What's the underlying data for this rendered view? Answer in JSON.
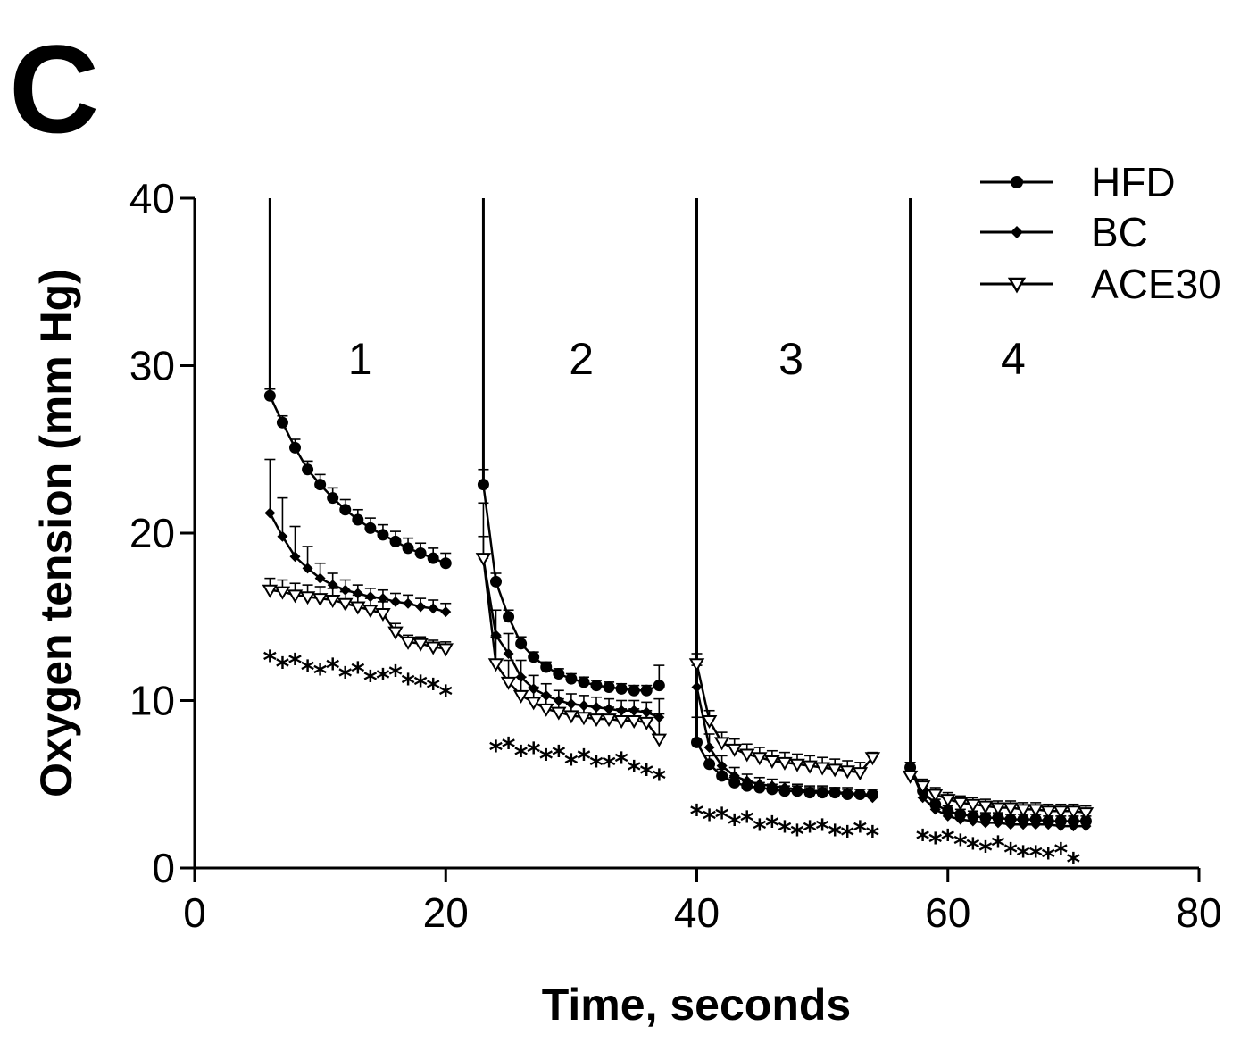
{
  "chart_data": {
    "type": "line",
    "panel_label": "C",
    "xlabel": "Time, seconds",
    "ylabel": "Oxygen tension (mm Hg)",
    "xlim": [
      0,
      80
    ],
    "ylim": [
      0,
      40
    ],
    "xticks": [
      "0",
      "20",
      "40",
      "60",
      "80"
    ],
    "yticks": [
      "0",
      "10",
      "20",
      "30",
      "40"
    ],
    "legend": {
      "placement": "top-right",
      "entries": [
        {
          "name": "HFD",
          "marker": "filled-circle"
        },
        {
          "name": "BC",
          "marker": "filled-diamond"
        },
        {
          "name": "ACE30",
          "marker": "open-triangle-down"
        }
      ]
    },
    "stage_labels": [
      {
        "text": "1",
        "x": 13.2,
        "y": 29.5
      },
      {
        "text": "2",
        "x": 30.8,
        "y": 29.5
      },
      {
        "text": "3",
        "x": 47.5,
        "y": 29.5
      },
      {
        "text": "4",
        "x": 65.2,
        "y": 29.5
      }
    ],
    "spikes": [
      6,
      23,
      40,
      57
    ],
    "series": [
      {
        "name": "HFD",
        "marker": "filled-circle",
        "segments": [
          {
            "x": [
              6,
              7,
              8,
              9,
              10,
              11,
              12,
              13,
              14,
              15,
              16,
              17,
              18,
              19,
              20
            ],
            "y": [
              28.2,
              26.6,
              25.1,
              23.8,
              22.9,
              22.1,
              21.4,
              20.8,
              20.3,
              19.9,
              19.5,
              19.1,
              18.8,
              18.5,
              18.2
            ],
            "err": [
              0.4,
              0.4,
              0.5,
              0.5,
              0.6,
              0.6,
              0.6,
              0.6,
              0.6,
              0.6,
              0.6,
              0.6,
              0.6,
              0.6,
              0.6
            ]
          },
          {
            "x": [
              23,
              24,
              25,
              26,
              27,
              28,
              29,
              30,
              31,
              32,
              33,
              34,
              35,
              36,
              37
            ],
            "y": [
              22.9,
              17.1,
              15,
              13.4,
              12.6,
              12,
              11.6,
              11.3,
              11.1,
              10.9,
              10.8,
              10.7,
              10.6,
              10.6,
              10.9
            ],
            "err": [
              0.9,
              0.5,
              0.4,
              0.4,
              0.3,
              0.3,
              0.3,
              0.3,
              0.3,
              0.3,
              0.3,
              0.3,
              0.3,
              0.3,
              1.2
            ]
          },
          {
            "x": [
              40,
              41,
              42,
              43,
              44,
              45,
              46,
              47,
              48,
              49,
              50,
              51,
              52,
              53,
              54
            ],
            "y": [
              7.5,
              6.2,
              5.5,
              5.1,
              4.9,
              4.8,
              4.7,
              4.6,
              4.6,
              4.5,
              4.5,
              4.5,
              4.4,
              4.4,
              4.4
            ],
            "err": [
              1.5,
              0.5,
              0.4,
              0.3,
              0.3,
              0.3,
              0.3,
              0.3,
              0.3,
              0.3,
              0.3,
              0.3,
              0.3,
              0.3,
              0.3
            ]
          },
          {
            "x": [
              57,
              58,
              59,
              60,
              61,
              62,
              63,
              64,
              65,
              66,
              67,
              68,
              69,
              70,
              71
            ],
            "y": [
              6,
              4.6,
              3.8,
              3.4,
              3.2,
              3.1,
              3,
              3,
              2.9,
              2.9,
              2.9,
              2.8,
              2.8,
              2.8,
              2.8
            ],
            "err": [
              0.3,
              0.3,
              0.3,
              0.3,
              0.3,
              0.3,
              0.3,
              0.3,
              0.3,
              0.3,
              0.3,
              0.3,
              0.3,
              0.3,
              0.3
            ]
          }
        ]
      },
      {
        "name": "BC",
        "marker": "filled-diamond",
        "segments": [
          {
            "x": [
              6,
              7,
              8,
              9,
              10,
              11,
              12,
              13,
              14,
              15,
              16,
              17,
              18,
              19,
              20
            ],
            "y": [
              21.2,
              19.8,
              18.6,
              17.9,
              17.3,
              16.9,
              16.6,
              16.4,
              16.2,
              16.1,
              15.9,
              15.8,
              15.6,
              15.5,
              15.3
            ],
            "err": [
              3.2,
              2.3,
              1.8,
              1.3,
              0.9,
              0.7,
              0.6,
              0.5,
              0.5,
              0.5,
              0.5,
              0.5,
              0.5,
              0.5,
              0.5
            ]
          },
          {
            "x": [
              23,
              24,
              25,
              26,
              27,
              28,
              29,
              30,
              31,
              32,
              33,
              34,
              35,
              36,
              37
            ],
            "y": [
              18.5,
              13.9,
              12.8,
              11.4,
              10.7,
              10.3,
              10,
              9.8,
              9.7,
              9.6,
              9.5,
              9.4,
              9.4,
              9.3,
              9
            ],
            "err": [
              1.3,
              1.5,
              1.2,
              1,
              0.8,
              0.7,
              0.6,
              0.6,
              0.6,
              0.6,
              0.6,
              0.6,
              0.6,
              0.6,
              1.1
            ]
          },
          {
            "x": [
              40,
              41,
              42,
              43,
              44,
              45,
              46,
              47,
              48,
              49,
              50,
              51,
              52,
              53,
              54
            ],
            "y": [
              10.8,
              7.2,
              6.1,
              5.5,
              5.2,
              5,
              4.9,
              4.8,
              4.7,
              4.6,
              4.6,
              4.5,
              4.5,
              4.4,
              4.2
            ],
            "err": [
              1.3,
              0.8,
              0.6,
              0.5,
              0.4,
              0.4,
              0.4,
              0.3,
              0.3,
              0.3,
              0.3,
              0.3,
              0.3,
              0.3,
              0.3
            ]
          },
          {
            "x": [
              57,
              58,
              59,
              60,
              61,
              62,
              63,
              64,
              65,
              66,
              67,
              68,
              69,
              70,
              71
            ],
            "y": [
              6,
              4.2,
              3.5,
              3.1,
              2.9,
              2.8,
              2.7,
              2.7,
              2.6,
              2.6,
              2.6,
              2.6,
              2.5,
              2.5,
              2.5
            ],
            "err": [
              0.3,
              0.3,
              0.3,
              0.3,
              0.3,
              0.3,
              0.3,
              0.3,
              0.3,
              0.3,
              0.3,
              0.3,
              0.3,
              0.3,
              0.3
            ]
          }
        ]
      },
      {
        "name": "ACE30",
        "marker": "open-triangle-down",
        "segments": [
          {
            "x": [
              6,
              7,
              8,
              9,
              10,
              11,
              12,
              13,
              14,
              15,
              16,
              17,
              18,
              19,
              20
            ],
            "y": [
              16.6,
              16.5,
              16.3,
              16.2,
              16.1,
              16,
              15.8,
              15.6,
              15.4,
              15.2,
              14.1,
              13.5,
              13.4,
              13.2,
              13.1
            ],
            "err": [
              0.7,
              0.7,
              0.7,
              0.7,
              0.7,
              0.7,
              0.7,
              0.7,
              0.7,
              0.7,
              0.5,
              0.4,
              0.4,
              0.4,
              0.4
            ]
          },
          {
            "x": [
              23,
              24,
              25,
              26,
              27,
              28,
              29,
              30,
              31,
              32,
              33,
              34,
              35,
              36,
              37
            ],
            "y": [
              18.5,
              12.2,
              11.1,
              10.3,
              9.9,
              9.5,
              9.3,
              9.1,
              9,
              8.9,
              8.9,
              8.8,
              8.8,
              8.7,
              7.7
            ],
            "err": [
              3.3,
              1.6,
              1.3,
              1.1,
              0.9,
              0.8,
              0.8,
              0.7,
              0.7,
              0.7,
              0.7,
              0.7,
              0.7,
              0.7,
              1.5
            ]
          },
          {
            "x": [
              40,
              41,
              42,
              43,
              44,
              45,
              46,
              47,
              48,
              49,
              50,
              51,
              52,
              53,
              54
            ],
            "y": [
              12.2,
              8.8,
              7.5,
              7.1,
              6.8,
              6.6,
              6.4,
              6.3,
              6.2,
              6.1,
              6,
              5.9,
              5.8,
              5.7,
              6.6
            ],
            "err": [
              0.6,
              0.6,
              0.6,
              0.6,
              0.6,
              0.6,
              0.6,
              0.6,
              0.6,
              0.6,
              0.6,
              0.6,
              0.6,
              0.6,
              0.3
            ]
          },
          {
            "x": [
              57,
              58,
              59,
              60,
              61,
              62,
              63,
              64,
              65,
              66,
              67,
              68,
              69,
              70,
              71
            ],
            "y": [
              5.5,
              4.9,
              4.4,
              4.1,
              3.9,
              3.8,
              3.7,
              3.6,
              3.6,
              3.5,
              3.5,
              3.4,
              3.4,
              3.4,
              3.3
            ],
            "err": [
              0.4,
              0.4,
              0.4,
              0.4,
              0.4,
              0.4,
              0.4,
              0.4,
              0.4,
              0.4,
              0.4,
              0.4,
              0.4,
              0.4,
              0.4
            ]
          }
        ]
      }
    ],
    "significance": [
      {
        "label": "*",
        "x": [
          6,
          7,
          8,
          9,
          10,
          11,
          12,
          13,
          14,
          15,
          16,
          17,
          18,
          19,
          20
        ],
        "y": [
          12.6,
          12.2,
          12.4,
          12,
          11.8,
          12.1,
          11.6,
          11.9,
          11.4,
          11.5,
          11.7,
          11.2,
          11.1,
          10.9,
          10.5
        ]
      },
      {
        "label": "*",
        "x": [
          24,
          25,
          26,
          27,
          28,
          29,
          30,
          31,
          32,
          33,
          34,
          35,
          36,
          37
        ],
        "y": [
          7.2,
          7.4,
          6.9,
          7.1,
          6.7,
          6.9,
          6.4,
          6.7,
          6.3,
          6.3,
          6.5,
          6,
          5.8,
          5.5
        ]
      },
      {
        "label": "*",
        "x": [
          40,
          41,
          42,
          43,
          44,
          45,
          46,
          47,
          48,
          49,
          50,
          51,
          52,
          53,
          54
        ],
        "y": [
          3.4,
          3.1,
          3.2,
          2.8,
          3,
          2.5,
          2.7,
          2.4,
          2.2,
          2.4,
          2.5,
          2.2,
          2.1,
          2.4,
          2.1
        ]
      },
      {
        "label": "*",
        "x": [
          58,
          59,
          60,
          61,
          62,
          63,
          64,
          65,
          66,
          67,
          68,
          69,
          70
        ],
        "y": [
          1.9,
          1.7,
          1.9,
          1.6,
          1.4,
          1.2,
          1.5,
          1.1,
          0.9,
          0.9,
          0.8,
          1.1,
          0.5
        ]
      }
    ],
    "grid": false
  }
}
